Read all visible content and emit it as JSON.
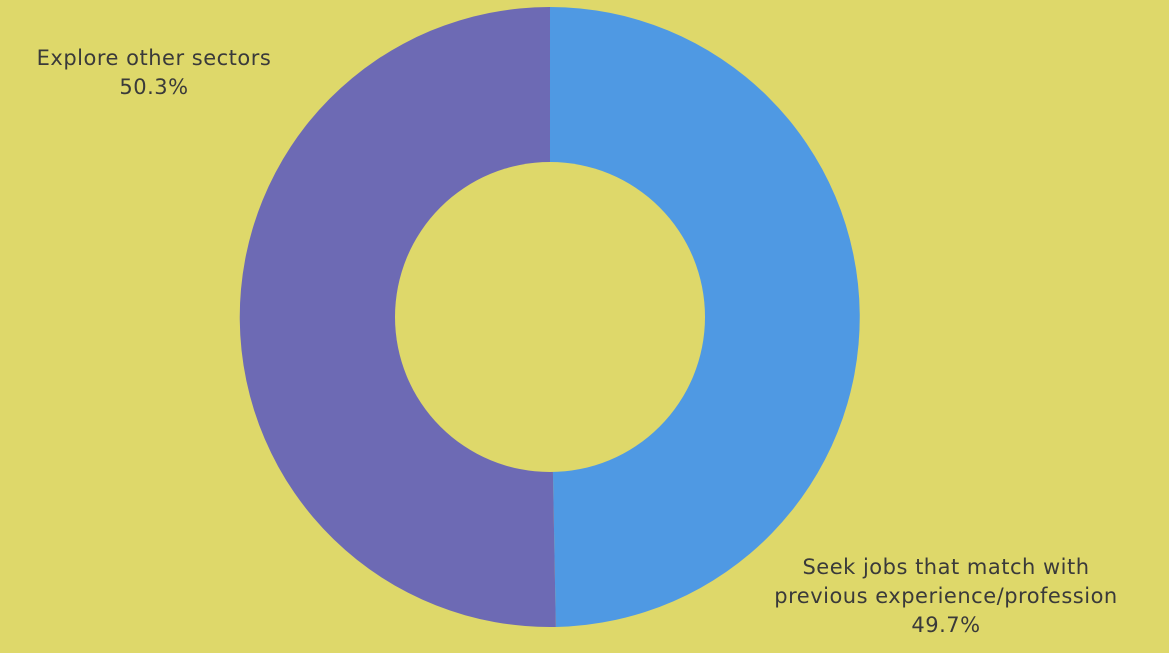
{
  "chart_data": {
    "type": "pie",
    "variant": "donut",
    "background_color": "#DED86A",
    "hole_color": "#DED86A",
    "slices": [
      {
        "label_lines": [
          "Seek jobs that match with",
          "previous experience/profession"
        ],
        "value": 49.7,
        "value_label": "49.7%",
        "color": "#4F99E3"
      },
      {
        "label_lines": [
          "Explore other sectors"
        ],
        "value": 50.3,
        "value_label": "50.3%",
        "color": "#6D6AB4"
      }
    ]
  }
}
